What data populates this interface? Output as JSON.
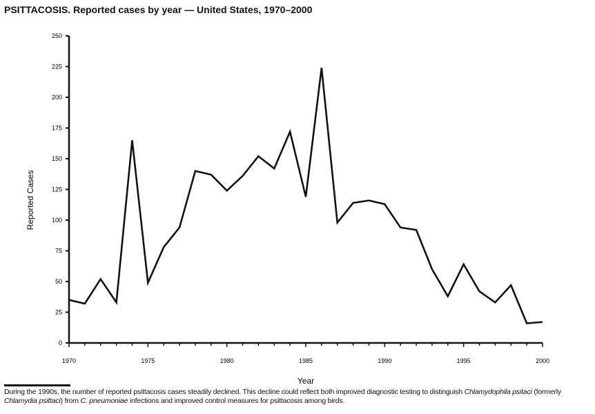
{
  "chart_data": {
    "type": "line",
    "title": "PSITTACOSIS. Reported cases by year — United States, 1970–2000",
    "xlabel": "Year",
    "ylabel": "Reported Cases",
    "xlim": [
      1970,
      2000
    ],
    "ylim": [
      0,
      250
    ],
    "xticks": [
      1970,
      1975,
      1980,
      1985,
      1990,
      1995,
      2000
    ],
    "yticks": [
      0,
      25,
      50,
      75,
      100,
      125,
      150,
      175,
      200,
      225,
      250
    ],
    "grid": false,
    "line_color": "#111111",
    "x": [
      1970,
      1971,
      1972,
      1973,
      1974,
      1975,
      1976,
      1977,
      1978,
      1979,
      1980,
      1981,
      1982,
      1983,
      1984,
      1985,
      1986,
      1987,
      1988,
      1989,
      1990,
      1991,
      1992,
      1993,
      1994,
      1995,
      1996,
      1997,
      1998,
      1999,
      2000
    ],
    "values": [
      35,
      32,
      52,
      33,
      165,
      49,
      78,
      94,
      140,
      137,
      124,
      136,
      152,
      142,
      172,
      119,
      224,
      98,
      114,
      116,
      113,
      94,
      92,
      60,
      38,
      64,
      42,
      33,
      47,
      16,
      17
    ]
  },
  "caption": {
    "p1": "During the 1990s, the number of reported psittacosis cases steadily declined. This decline could reflect both improved diagnostic testing to distinguish ",
    "i1": "Chlamydophila psitaci",
    "p2": " (formerly ",
    "i2": "Chlamydia psittaci",
    "p3": ") from ",
    "i3": "C. pneumoniae",
    "p4": " infections and improved control measures for psittacosis among birds."
  }
}
